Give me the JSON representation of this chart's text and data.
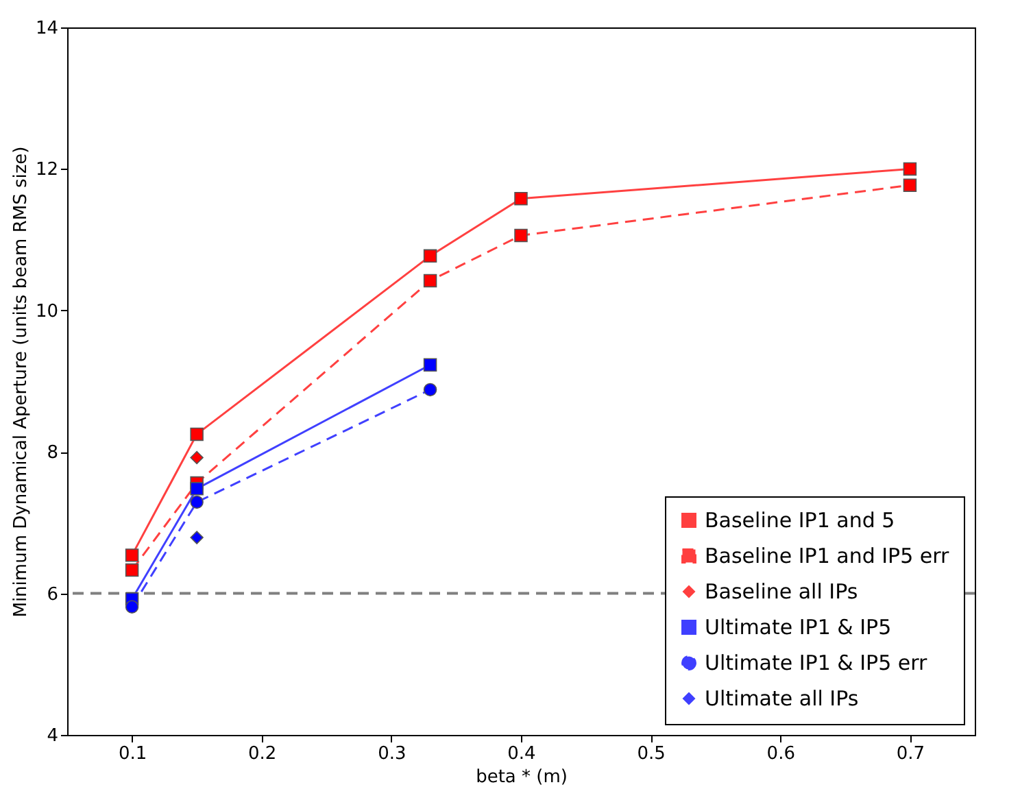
{
  "chart_data": {
    "type": "line",
    "xlabel": "beta * (m)",
    "ylabel": "Minimum Dynamical Aperture (units beam RMS size)",
    "xlim": [
      0.05,
      0.75
    ],
    "ylim": [
      4,
      14
    ],
    "xticks": [
      0.1,
      0.2,
      0.3,
      0.4,
      0.5,
      0.6,
      0.7
    ],
    "yticks": [
      4,
      6,
      8,
      10,
      12,
      14
    ],
    "grid": false,
    "legend": "bottom right",
    "ref_lines": [
      {
        "axis": "y",
        "value": 6,
        "color": "#808080",
        "line_style": "dashed"
      }
    ],
    "series": [
      {
        "name": "Baseline IP1 and 5",
        "type": "line",
        "color": "#ff0000",
        "marker": "square",
        "line_style": "solid",
        "x": [
          0.1,
          0.15,
          0.33,
          0.4,
          0.7
        ],
        "values": [
          6.54,
          8.25,
          10.77,
          11.58,
          12.0
        ]
      },
      {
        "name": "Baseline IP1 and IP5 err",
        "type": "line",
        "color": "#ff0000",
        "marker": "square",
        "line_style": "dashed",
        "x": [
          0.1,
          0.15,
          0.33,
          0.4,
          0.7
        ],
        "values": [
          6.33,
          7.56,
          10.42,
          11.06,
          11.77
        ]
      },
      {
        "name": "Baseline all IPs",
        "type": "scatter",
        "color": "#ff0000",
        "marker": "diamond",
        "x": [
          0.15
        ],
        "values": [
          7.92
        ]
      },
      {
        "name": "Ultimate IP1 & IP5",
        "type": "line",
        "color": "#0000ff",
        "marker": "square",
        "line_style": "solid",
        "x": [
          0.1,
          0.15,
          0.33
        ],
        "values": [
          5.92,
          7.48,
          9.23
        ]
      },
      {
        "name": "Ultimate IP1 & IP5 err",
        "type": "line",
        "color": "#0000ff",
        "marker": "circle",
        "line_style": "dashed",
        "x": [
          0.1,
          0.15,
          0.33
        ],
        "values": [
          5.81,
          7.29,
          8.88
        ]
      },
      {
        "name": "Ultimate all IPs",
        "type": "scatter",
        "color": "#0000ff",
        "marker": "diamond",
        "x": [
          0.15
        ],
        "values": [
          6.79
        ]
      }
    ]
  }
}
